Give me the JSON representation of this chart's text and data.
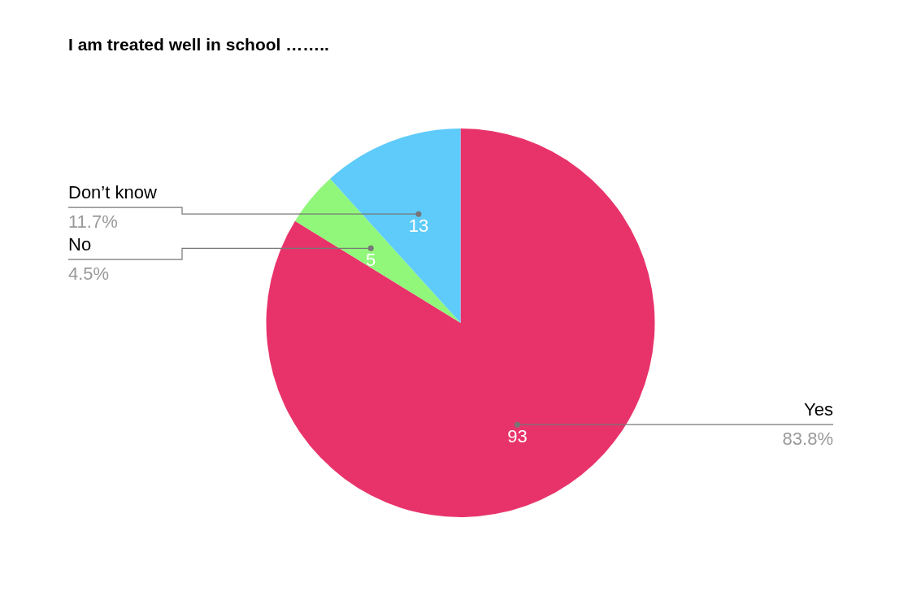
{
  "chart_data": {
    "type": "pie",
    "title": "I am treated well in school ……..",
    "categories": [
      "Yes",
      "No",
      "Don’t know"
    ],
    "values": [
      93,
      5,
      13
    ],
    "colors": [
      "#e8336a",
      "#90f77a",
      "#5ecbfa"
    ],
    "data_labels": true,
    "annotations": [
      "83.8%",
      "4.5%",
      "11.7%"
    ],
    "legend": false
  }
}
